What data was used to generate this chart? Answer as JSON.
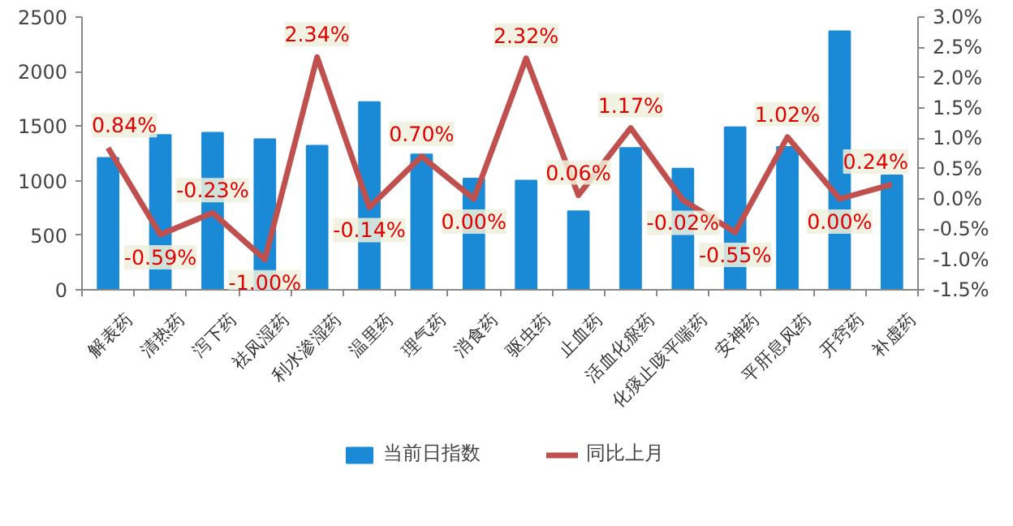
{
  "chart_data": {
    "type": "bar",
    "categories": [
      "解表药",
      "清热药",
      "泻下药",
      "祛风湿药",
      "利水渗湿药",
      "温里药",
      "理气药",
      "消食药",
      "驱虫药",
      "止血药",
      "活血化瘀药",
      "化痰止咳平喘药",
      "安神药",
      "平肝息风药",
      "开窍药",
      "补虚药"
    ],
    "series": [
      {
        "name": "当前日指数",
        "color": "#1a8ad6",
        "values": [
          1210,
          1420,
          1440,
          1380,
          1320,
          1720,
          1240,
          1020,
          1000,
          720,
          1300,
          1110,
          1490,
          1310,
          2370,
          1050
        ]
      },
      {
        "name": "同比上月",
        "type": "line",
        "axis": "y2",
        "color": "#c0504d",
        "values": [
          0.84,
          -0.59,
          -0.23,
          -1.0,
          2.34,
          -0.14,
          0.7,
          0.0,
          2.32,
          0.06,
          1.17,
          -0.02,
          -0.55,
          1.02,
          0.0,
          0.24
        ],
        "value_labels": [
          "0.84%",
          "-0.59%",
          "-0.23%",
          "-1.00%",
          "2.34%",
          "-0.14%",
          "0.70%",
          "0.00%",
          "2.32%",
          "0.06%",
          "1.17%",
          "-0.02%",
          "-0.55%",
          "1.02%",
          "0.00%",
          "0.24%"
        ]
      }
    ],
    "ylim": [
      0,
      2500
    ],
    "yticks": [
      0,
      500,
      1000,
      1500,
      2000,
      2500
    ],
    "y2lim": [
      -1.5,
      3.0
    ],
    "y2ticks": [
      {
        "value": -1.5,
        "label": "-1.5%"
      },
      {
        "value": -1.0,
        "label": "-1.0%"
      },
      {
        "value": -0.5,
        "label": "-0.5%"
      },
      {
        "value": 0.0,
        "label": "0.0%"
      },
      {
        "value": 0.5,
        "label": "0.5%"
      },
      {
        "value": 1.0,
        "label": "1.0%"
      },
      {
        "value": 1.5,
        "label": "1.5%"
      },
      {
        "value": 2.0,
        "label": "2.0%"
      },
      {
        "value": 2.5,
        "label": "2.5%"
      },
      {
        "value": 3.0,
        "label": "3.0%"
      }
    ],
    "grid": false,
    "legend": "bottom",
    "marker": "none",
    "line_style": "solid"
  }
}
